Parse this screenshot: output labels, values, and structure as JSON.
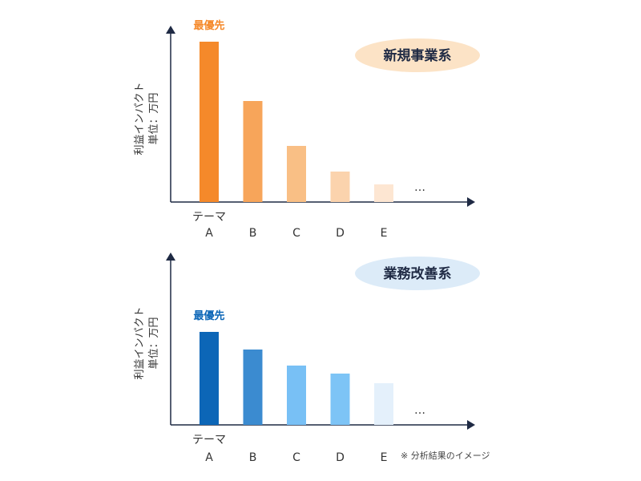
{
  "chart_data": [
    {
      "type": "bar",
      "panel": "new-business",
      "badge_label": "新規事業系",
      "badge_color": "#fce3c6",
      "ylabel_line1": "利益インパクト",
      "ylabel_line2": "単位：万円",
      "xlabel": "テーマ",
      "categories": [
        "A",
        "B",
        "C",
        "D",
        "E"
      ],
      "values": [
        100,
        63,
        35,
        19,
        11
      ],
      "colors": [
        "#f5892a",
        "#f7a55a",
        "#f9bf85",
        "#fbd3ad",
        "#fde6d2"
      ],
      "ellipsis": "…",
      "top_label": "最優先",
      "top_label_color": "#f5892a",
      "ylim": [
        0,
        105
      ]
    },
    {
      "type": "bar",
      "panel": "business-improvement",
      "badge_label": "業務改善系",
      "badge_color": "#dcebf8",
      "ylabel_line1": "利益インパクト",
      "ylabel_line2": "単位：万円",
      "xlabel": "テーマ",
      "categories": [
        "A",
        "B",
        "C",
        "D",
        "E"
      ],
      "values": [
        58,
        47,
        37,
        32,
        26
      ],
      "colors": [
        "#0c66b7",
        "#3b8bd0",
        "#78c0f5",
        "#7dc4f6",
        "#e4f0fb"
      ],
      "ellipsis": "…",
      "top_label": "最優先",
      "top_label_color": "#0c66b7",
      "ylim": [
        0,
        105
      ]
    }
  ],
  "footnote": "※ 分析結果のイメージ"
}
